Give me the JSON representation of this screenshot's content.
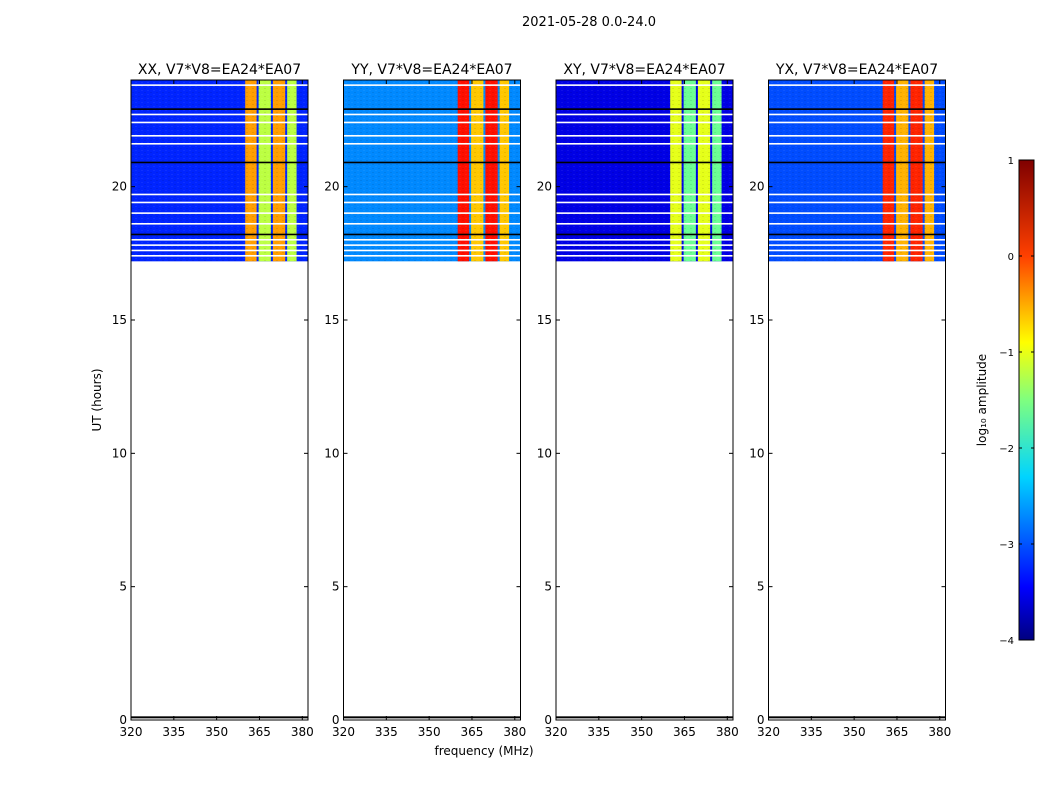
{
  "figure": {
    "suptitle": "2021-05-28 0.0-24.0",
    "xlabel": "frequency (MHz)",
    "ylabel": "UT (hours)"
  },
  "colorbar": {
    "label": "log₁₀ amplitude",
    "range": [
      -4,
      1
    ],
    "ticks": [
      {
        "value": 1,
        "label": "1"
      },
      {
        "value": 0,
        "label": "0"
      },
      {
        "value": -1,
        "label": "−1"
      },
      {
        "value": -2,
        "label": "−2"
      },
      {
        "value": -3,
        "label": "−3"
      },
      {
        "value": -4,
        "label": "−4"
      }
    ],
    "colormap": [
      "#00007f",
      "#0000ff",
      "#007fff",
      "#00ffff",
      "#7fff7f",
      "#ffff00",
      "#ff7f00",
      "#ff0000",
      "#7f0000"
    ]
  },
  "chart_data": {
    "type": "heatmap",
    "x_range": [
      320,
      382
    ],
    "y_range": [
      0,
      24
    ],
    "x_ticks": [
      320,
      335,
      350,
      365,
      380
    ],
    "y_ticks": [
      0,
      5,
      10,
      15,
      20
    ],
    "data_time_range": [
      17.2,
      24
    ],
    "bright_band_mhz": [
      360,
      378
    ],
    "band_gaps_mhz": [
      364,
      369,
      374
    ],
    "flagged_ut_rows": [
      17.4,
      17.6,
      17.8,
      18.0,
      18.2,
      18.6,
      19.0,
      19.4,
      19.7,
      20.9,
      21.6,
      21.9,
      22.4,
      22.7,
      22.9,
      23.8
    ],
    "panels": [
      {
        "title": "XX, V7*V8=EA24*EA07",
        "background_log_amp": -3.2,
        "band_log_amp": -1.2,
        "band_peak_log_amp": -0.4
      },
      {
        "title": "YY, V7*V8=EA24*EA07",
        "background_log_amp": -2.7,
        "band_log_amp": -0.6,
        "band_peak_log_amp": 0.3
      },
      {
        "title": "XY, V7*V8=EA24*EA07",
        "background_log_amp": -3.5,
        "band_log_amp": -1.6,
        "band_peak_log_amp": -1.0
      },
      {
        "title": "YX, V7*V8=EA24*EA07",
        "background_log_amp": -3.0,
        "band_log_amp": -0.5,
        "band_peak_log_amp": 0.2
      }
    ]
  }
}
